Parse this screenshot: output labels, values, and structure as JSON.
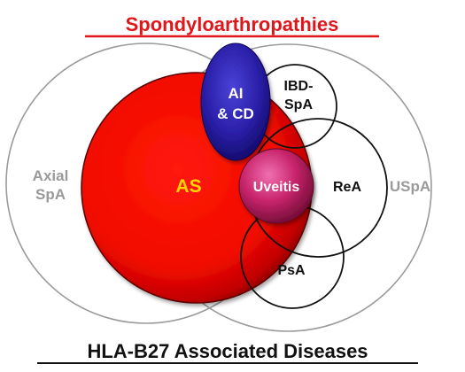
{
  "diagram": {
    "title": "Spondyloarthropathies",
    "subtitle": "HLA-B27 Associated Diseases",
    "sets": {
      "axial_spa": {
        "line1": "Axial",
        "line2": "SpA"
      },
      "uspa": {
        "label": "USpA"
      },
      "as": {
        "label": "AS"
      },
      "ai_cd": {
        "line1": "AI",
        "line2": "& CD"
      },
      "ibd_spa": {
        "line1": "IBD-",
        "line2": "SpA"
      },
      "rea": {
        "label": "ReA"
      },
      "psa": {
        "label": "PsA"
      },
      "uveitis": {
        "label": "Uveitis"
      }
    },
    "colors": {
      "title_red": "#e0161b",
      "subtitle_black": "#111111",
      "outer_circle_stroke": "#9a9a9a",
      "outer_label_gray": "#9a9a9a",
      "as_fill": "#ee0000",
      "as_label": "#ffd700",
      "ai_cd_fill": "#2a1fa8",
      "uveitis_fill": "#c8246b",
      "small_circle_stroke": "#111111"
    }
  }
}
